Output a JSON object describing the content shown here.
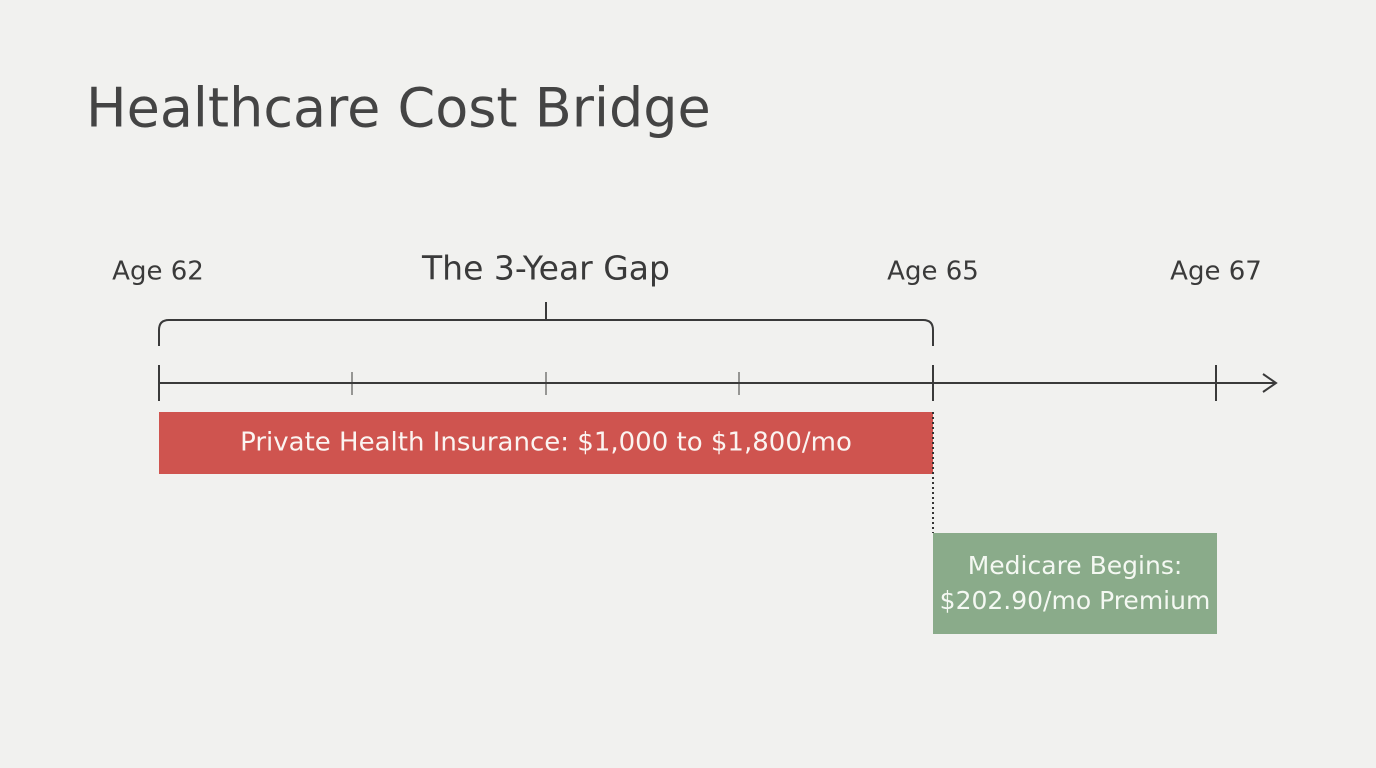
{
  "header": {
    "title": "Healthcare Cost Bridge"
  },
  "timeline": {
    "start_label": "Age 62",
    "gap_label": "The 3-Year Gap",
    "medicare_label": "Age 65",
    "end_label": "Age 67"
  },
  "bars": {
    "private": "Private Health Insurance: $1,000 to $1,800/mo",
    "medicare": [
      "Medicare Begins:",
      "$202.90/mo Premium"
    ]
  }
}
